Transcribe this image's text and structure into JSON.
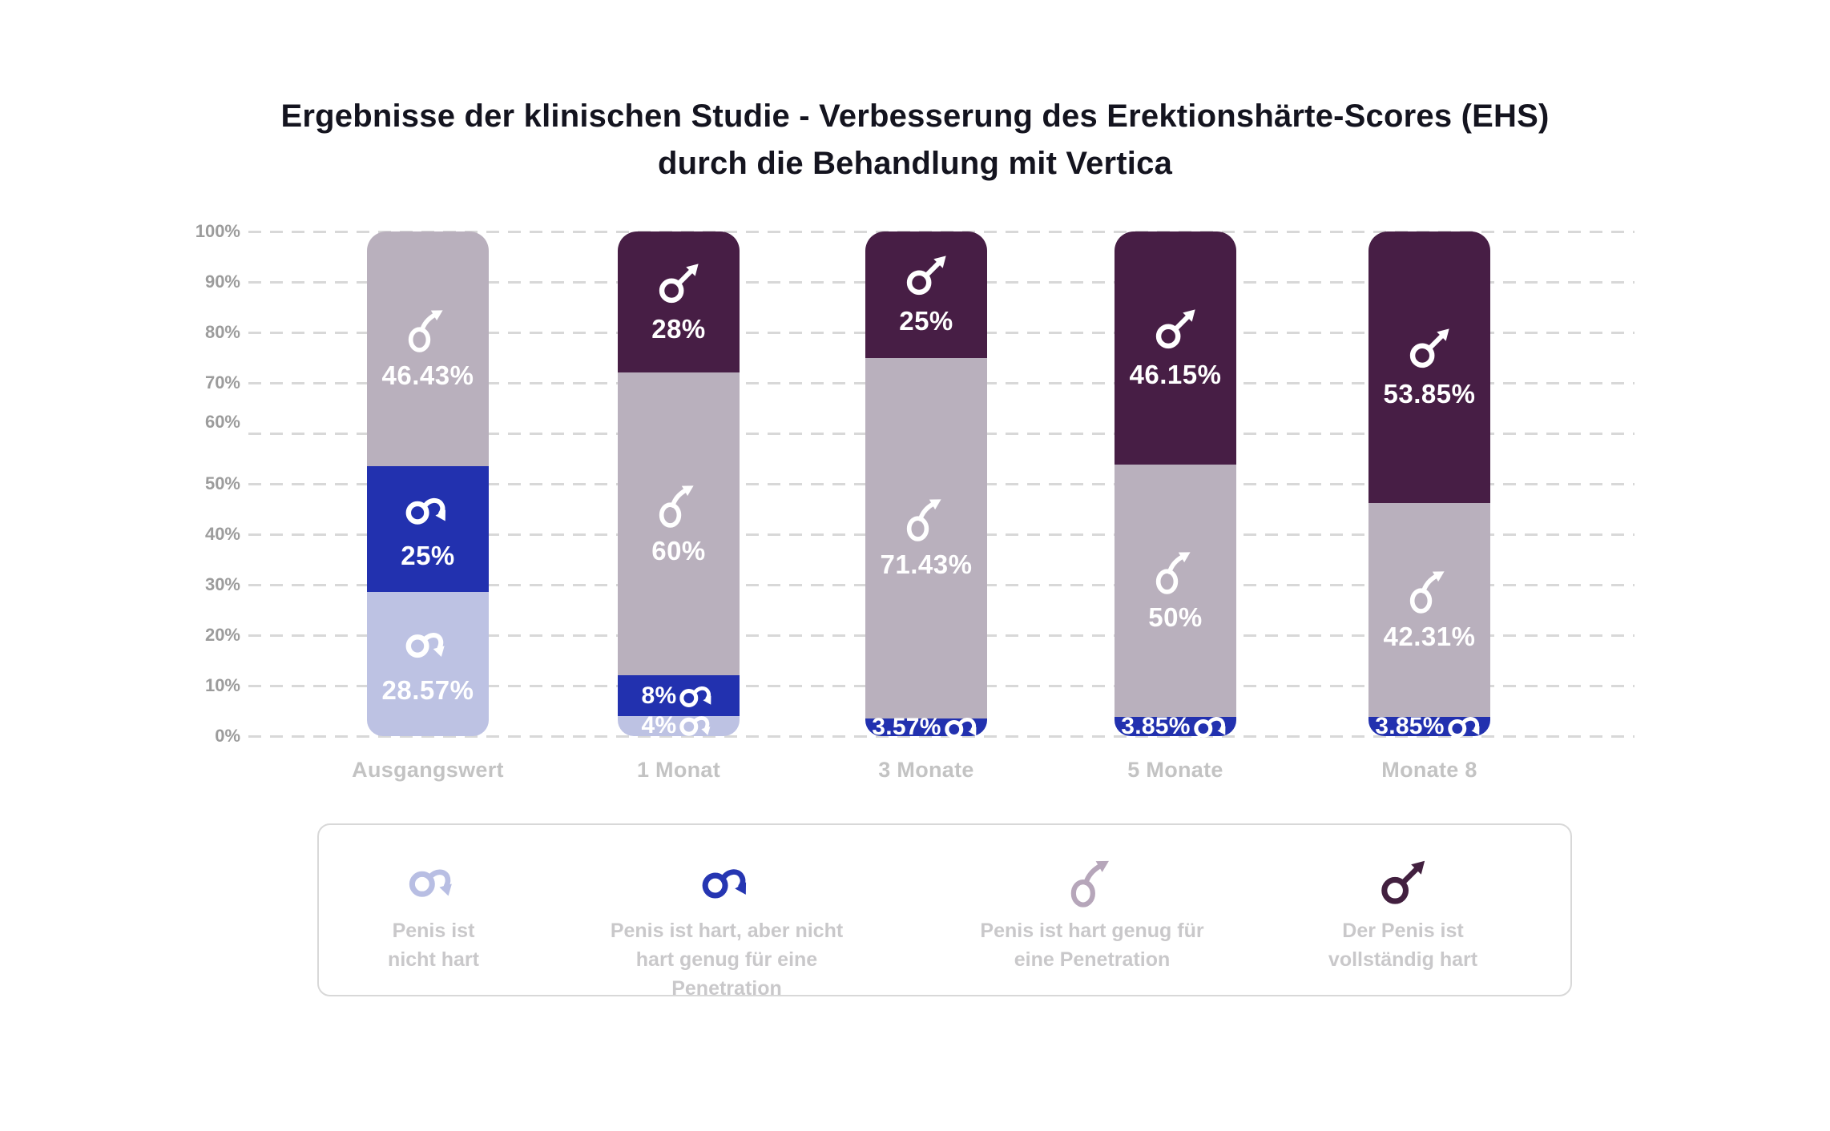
{
  "title": {
    "line1": "Ergebnisse der klinischen Studie - Verbesserung des Erektionshärte-Scores (EHS)",
    "line2": "durch die Behandlung mit Vertica"
  },
  "colors": {
    "not_hard": "#bdc2e3",
    "hard_not_enough": "#2231af",
    "hard_enough": "#b9b0bd",
    "fully_hard": "#471e45",
    "grid": "#d8d8d8",
    "y_tick_text": "#9c9c9c",
    "x_label_text": "#c3c3c3",
    "legend_text": "#c9c8ca",
    "bar_label_text": "#ffffff"
  },
  "chart_data": {
    "type": "bar",
    "stacked": true,
    "title": "Ergebnisse der klinischen Studie - Verbesserung des Erektionshärte-Scores (EHS) durch die Behandlung mit Vertica",
    "categories": [
      "Ausgangswert",
      "1 Monat",
      "3 Monate",
      "5 Monate",
      "Monate 8"
    ],
    "series": [
      {
        "key": "not_hard",
        "name": "Penis ist nicht hart",
        "color": "#bdc2e3",
        "icon": "male-droop-arrow-icon",
        "values": [
          28.57,
          4,
          0,
          0,
          0
        ],
        "labels": [
          "28.57%",
          "4%",
          "",
          "",
          ""
        ]
      },
      {
        "key": "hard_not_enough",
        "name": "Penis ist hart, aber nicht hart genug für eine Penetration",
        "color": "#2231af",
        "icon": "male-hook-arrow-icon",
        "values": [
          25,
          8,
          3.57,
          3.85,
          3.85
        ],
        "labels": [
          "25%",
          "8%",
          "3.57%",
          "3.85%",
          "3.85%"
        ]
      },
      {
        "key": "hard_enough",
        "name": "Penis ist hart genug für eine Penetration",
        "color": "#b9b0bd",
        "icon": "male-curved-up-arrow-icon",
        "values": [
          46.43,
          60,
          71.43,
          50,
          42.31
        ],
        "labels": [
          "46.43%",
          "60%",
          "71.43%",
          "50%",
          "42.31%"
        ]
      },
      {
        "key": "fully_hard",
        "name": "Der Penis ist vollständig hart",
        "color": "#471e45",
        "icon": "male-straight-arrow-icon",
        "values": [
          0,
          28,
          25,
          46.15,
          53.85
        ],
        "labels": [
          "",
          "28%",
          "25%",
          "46.15%",
          "53.85%"
        ]
      }
    ],
    "xlabel": "",
    "ylabel": "",
    "ylim": [
      0,
      100
    ],
    "y_ticks": [
      "100%",
      "90%",
      "80%",
      "70%",
      "60%",
      "50%",
      "40%",
      "30%",
      "20%",
      "10%",
      "0%"
    ],
    "grid": "dashed-horizontal",
    "legend_position": "bottom"
  },
  "legend": {
    "items": [
      {
        "key": "not_hard",
        "color": "#b8bee3",
        "lines": [
          "Penis ist",
          "nicht hart"
        ]
      },
      {
        "key": "hard_not_enough",
        "color": "#2636b2",
        "lines": [
          "Penis ist hart, aber nicht",
          "hart genug für eine",
          "Penetration"
        ]
      },
      {
        "key": "hard_enough",
        "color": "#b6a6ba",
        "lines": [
          "Penis ist hart genug für",
          "eine Penetration"
        ]
      },
      {
        "key": "fully_hard",
        "color": "#42203f",
        "lines": [
          "Der Penis ist",
          "vollständig hart"
        ]
      }
    ]
  }
}
